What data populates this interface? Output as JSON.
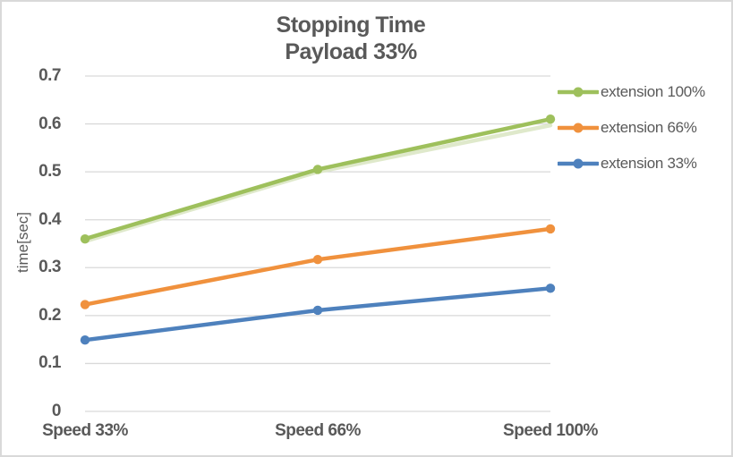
{
  "chart_data": {
    "type": "line",
    "title_lines": [
      "Stopping Time",
      "Payload 33%"
    ],
    "title": "Stopping Time Payload 33%",
    "ylabel": "time[sec]",
    "xlabel": "",
    "categories": [
      "Speed 33%",
      "Speed 66%",
      "Speed 100%"
    ],
    "series": [
      {
        "name": "extension 100%",
        "color": "#9EC05C",
        "values": [
          0.36,
          0.505,
          0.61
        ]
      },
      {
        "name": "extension 66%",
        "color": "#F0913D",
        "values": [
          0.223,
          0.317,
          0.381
        ]
      },
      {
        "name": "extension 33%",
        "color": "#4E81BD",
        "values": [
          0.149,
          0.211,
          0.257
        ]
      }
    ],
    "shadow_series": {
      "name": "shadow",
      "color": "#DFE9CB",
      "values": [
        0.355,
        0.5,
        0.597
      ]
    },
    "ylim": [
      0,
      0.7
    ],
    "yticks": [
      "0",
      "0.1",
      "0.2",
      "0.3",
      "0.4",
      "0.5",
      "0.6",
      "0.7"
    ],
    "grid": "horizontal",
    "legend_position": "right",
    "marker": "circle",
    "colors": {
      "text": "#595959",
      "gridline": "#D9D9D9",
      "frame_border": "#D9D9D9",
      "background": "#FFFFFF"
    }
  }
}
